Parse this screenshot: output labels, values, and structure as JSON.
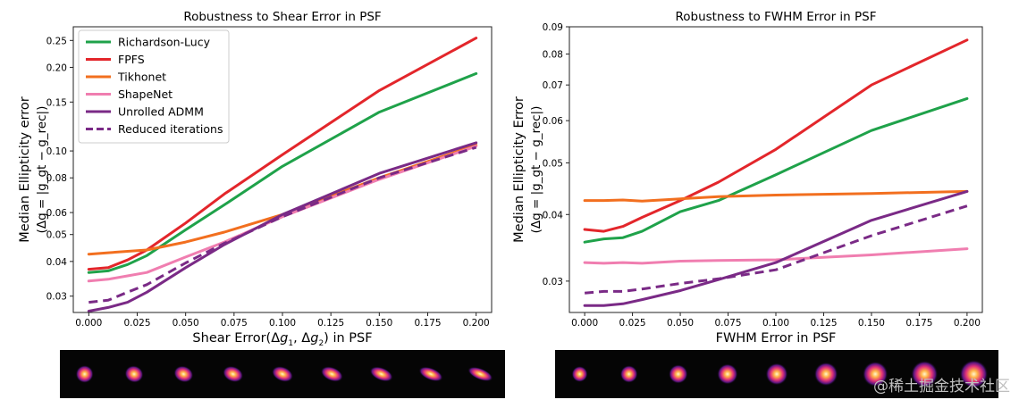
{
  "chart_data": [
    {
      "type": "line",
      "title": "Robustness to Shear Error in PSF",
      "xlabel": "Shear Error(Δg1, Δg2) in PSF",
      "ylabel_line1": "Median Ellipticity error",
      "ylabel_line2": "(Δg = |g_gt − g_rec|)",
      "yscale": "log",
      "xlim": [
        -0.008,
        0.208
      ],
      "ylim": [
        0.0262,
        0.28
      ],
      "x_ticks": [
        0.0,
        0.025,
        0.05,
        0.075,
        0.1,
        0.125,
        0.15,
        0.175,
        0.2
      ],
      "x_tick_labels": [
        "0.000",
        "0.025",
        "0.050",
        "0.075",
        "0.100",
        "0.125",
        "0.150",
        "0.175",
        "0.200"
      ],
      "y_ticks": [
        0.03,
        0.04,
        0.05,
        0.06,
        0.08,
        0.1,
        0.15,
        0.2,
        0.25
      ],
      "y_tick_labels": [
        "0.03",
        "0.04",
        "0.05",
        "0.06",
        "0.08",
        "0.10",
        "0.15",
        "0.20",
        "0.25"
      ],
      "legend_position": "top-left",
      "x": [
        0.0,
        0.01,
        0.02,
        0.03,
        0.05,
        0.07,
        0.1,
        0.15,
        0.2
      ],
      "series": [
        {
          "name": "Richardson-Lucy",
          "color": "#1fa24a",
          "dash": false,
          "values": [
            0.0365,
            0.037,
            0.039,
            0.042,
            0.052,
            0.064,
            0.088,
            0.138,
            0.19
          ]
        },
        {
          "name": "FPFS",
          "color": "#e3262b",
          "dash": false,
          "values": [
            0.0375,
            0.038,
            0.0405,
            0.044,
            0.055,
            0.07,
            0.097,
            0.165,
            0.255
          ]
        },
        {
          "name": "Tikhonet",
          "color": "#f26f1f",
          "dash": false,
          "values": [
            0.0425,
            0.043,
            0.0435,
            0.044,
            0.047,
            0.051,
            0.059,
            0.08,
            0.105
          ]
        },
        {
          "name": "ShapeNet",
          "color": "#f07eb0",
          "dash": false,
          "values": [
            0.034,
            0.0345,
            0.0355,
            0.0365,
            0.0415,
            0.047,
            0.058,
            0.079,
            0.104
          ]
        },
        {
          "name": "Unrolled ADMM",
          "color": "#7a2a86",
          "dash": false,
          "values": [
            0.0265,
            0.0273,
            0.0285,
            0.031,
            0.038,
            0.046,
            0.059,
            0.083,
            0.107
          ]
        },
        {
          "name": "Reduced iterations",
          "color": "#7a2a86",
          "dash": true,
          "values": [
            0.0285,
            0.029,
            0.031,
            0.033,
            0.0395,
            0.0465,
            0.058,
            0.08,
            0.103
          ]
        }
      ]
    },
    {
      "type": "line",
      "title": "Robustness to FWHM Error in PSF",
      "xlabel": "FWHM Error in PSF",
      "ylabel_line1": "Median Ellipticity Error",
      "ylabel_line2": "(Δg = |g_gt − g_rec|)",
      "yscale": "log",
      "xlim": [
        -0.008,
        0.208
      ],
      "ylim": [
        0.0262,
        0.09
      ],
      "x_ticks": [
        0.0,
        0.025,
        0.05,
        0.075,
        0.1,
        0.125,
        0.15,
        0.175,
        0.2
      ],
      "x_tick_labels": [
        "0.000",
        "0.025",
        "0.050",
        "0.075",
        "0.100",
        "0.125",
        "0.150",
        "0.175",
        "0.200"
      ],
      "y_ticks": [
        0.03,
        0.04,
        0.05,
        0.06,
        0.07,
        0.08,
        0.09
      ],
      "y_tick_labels": [
        "0.03",
        "0.04",
        "0.05",
        "0.06",
        "0.07",
        "0.08",
        "0.09"
      ],
      "x": [
        0.0,
        0.01,
        0.02,
        0.03,
        0.05,
        0.07,
        0.1,
        0.15,
        0.2
      ],
      "series": [
        {
          "name": "Richardson-Lucy",
          "color": "#1fa24a",
          "dash": false,
          "values": [
            0.0355,
            0.036,
            0.0362,
            0.0372,
            0.0405,
            0.0425,
            0.0475,
            0.0575,
            0.066
          ]
        },
        {
          "name": "FPFS",
          "color": "#e3262b",
          "dash": false,
          "values": [
            0.0375,
            0.0372,
            0.038,
            0.0395,
            0.0425,
            0.046,
            0.053,
            0.07,
            0.085
          ]
        },
        {
          "name": "Tikhonet",
          "color": "#f26f1f",
          "dash": false,
          "values": [
            0.0425,
            0.0425,
            0.0426,
            0.0424,
            0.0428,
            0.0432,
            0.0435,
            0.0438,
            0.0442
          ]
        },
        {
          "name": "ShapeNet",
          "color": "#f07eb0",
          "dash": false,
          "values": [
            0.0325,
            0.0324,
            0.0325,
            0.0324,
            0.0327,
            0.0328,
            0.0329,
            0.0336,
            0.0345
          ]
        },
        {
          "name": "Unrolled ADMM",
          "color": "#7a2a86",
          "dash": false,
          "values": [
            0.027,
            0.027,
            0.0272,
            0.0277,
            0.0288,
            0.0302,
            0.0325,
            0.039,
            0.0442
          ]
        },
        {
          "name": "Reduced iterations",
          "color": "#7a2a86",
          "dash": true,
          "values": [
            0.0285,
            0.0287,
            0.0287,
            0.029,
            0.0297,
            0.0303,
            0.0315,
            0.0365,
            0.0415
          ]
        }
      ]
    }
  ],
  "psf_strips": [
    {
      "name": "Shear PSF strip",
      "count": 9,
      "shear": [
        0.0,
        0.025,
        0.05,
        0.075,
        0.1,
        0.125,
        0.15,
        0.175,
        0.2
      ]
    },
    {
      "name": "FWHM PSF strip",
      "count": 9,
      "fwhm": [
        0.0,
        0.025,
        0.05,
        0.075,
        0.1,
        0.125,
        0.15,
        0.175,
        0.2
      ]
    }
  ],
  "watermark": "@稀土掘金技术社区",
  "colors": {
    "axis": "#222222",
    "background": "#ffffff",
    "strip_bg": "#050505"
  }
}
